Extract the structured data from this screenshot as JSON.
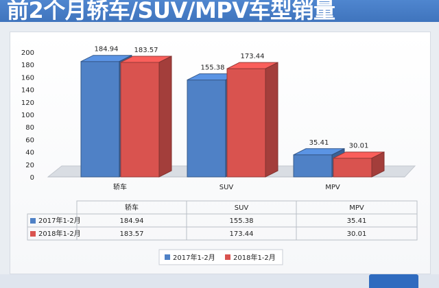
{
  "header": {
    "title": "前2个月轿车/SUV/MPV车型销量"
  },
  "colors": {
    "series_2017": "#4f81c6",
    "series_2018": "#d9534f",
    "title_band": "#3f74bd"
  },
  "chart_data": {
    "type": "bar",
    "title": "",
    "xlabel": "",
    "ylabel": "",
    "categories": [
      "轿车",
      "SUV",
      "MPV"
    ],
    "series": [
      {
        "name": "2017年1-2月",
        "values": [
          184.94,
          155.38,
          35.41
        ]
      },
      {
        "name": "2018年1-2月",
        "values": [
          183.57,
          173.44,
          30.01
        ]
      }
    ],
    "ylim": [
      0,
      200
    ],
    "yticks": [
      0,
      20,
      40,
      60,
      80,
      100,
      120,
      140,
      160,
      180,
      200
    ],
    "value_labels": [
      [
        "184.94",
        "155.38",
        "35.41"
      ],
      [
        "183.57",
        "173.44",
        "30.01"
      ]
    ],
    "table": {
      "rows": [
        {
          "label": "2017年1-2月",
          "cells": [
            "184.94",
            "155.38",
            "35.41"
          ]
        },
        {
          "label": "2018年1-2月",
          "cells": [
            "183.57",
            "173.44",
            "30.01"
          ]
        }
      ]
    },
    "legend_placement": "bottom",
    "grid": false,
    "style": "3d"
  }
}
